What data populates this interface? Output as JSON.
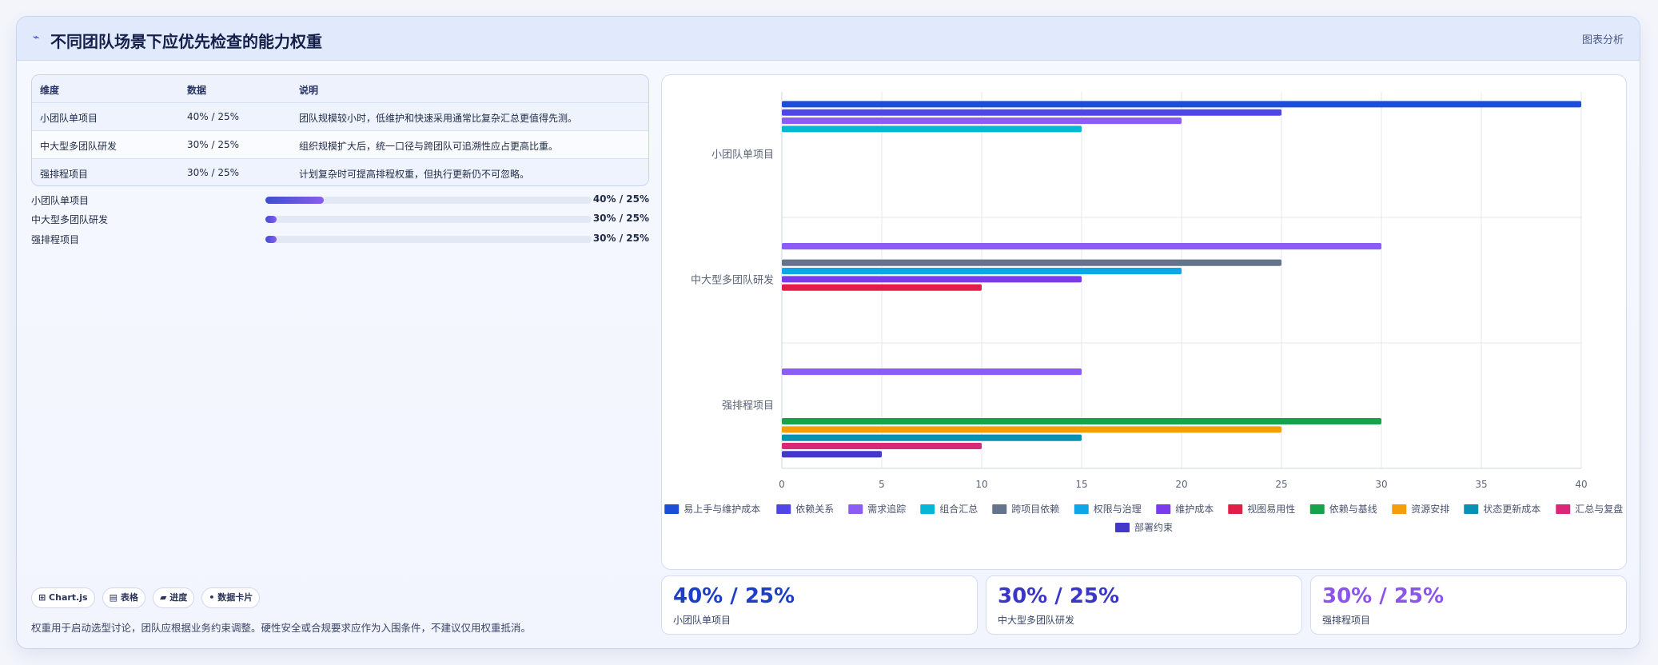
{
  "header": {
    "icon": "trend-line-icon",
    "title": "不同团队场景下应优先检查的能力权重",
    "badge": "图表分析"
  },
  "table": {
    "headers": [
      "维度",
      "数据",
      "说明"
    ],
    "rows": [
      [
        "小团队单项目",
        "40% / 25%",
        "团队规模较小时，低维护和快速采用通常比复杂汇总更值得先测。"
      ],
      [
        "中大型多团队研发",
        "30% / 25%",
        "组织规模扩大后，统一口径与跨团队可追溯性应占更高比重。"
      ],
      [
        "强排程项目",
        "30% / 25%",
        "计划复杂时可提高排程权重，但执行更新仍不可忽略。"
      ]
    ]
  },
  "progress": [
    {
      "label": "小团队单项目",
      "value": "40% / 25%",
      "fraction": 0.18
    },
    {
      "label": "中大型多团队研发",
      "value": "30% / 25%",
      "fraction": 0.035
    },
    {
      "label": "强排程项目",
      "value": "30% / 25%",
      "fraction": 0.035
    }
  ],
  "chips": [
    "⊞ Chart.js",
    "▤ 表格",
    "▰ 进度",
    "• 数据卡片"
  ],
  "footnote": "权重用于启动选型讨论，团队应根据业务约束调整。硬性安全或合规要求应作为入围条件，不建议仅用权重抵消。",
  "stats": [
    {
      "value": "40% / 25%",
      "label": "小团队单项目",
      "color": "#1d3fc8"
    },
    {
      "value": "30% / 25%",
      "label": "中大型多团队研发",
      "color": "#3a36c9"
    },
    {
      "value": "30% / 25%",
      "label": "强排程项目",
      "color": "#8b55ea"
    }
  ],
  "chart_data": {
    "type": "bar",
    "orientation": "horizontal",
    "categories": [
      "小团队单项目",
      "中大型多团队研发",
      "强排程项目"
    ],
    "xlim": [
      0,
      40
    ],
    "xticks": [
      0,
      5,
      10,
      15,
      20,
      25,
      30,
      35,
      40
    ],
    "grid": true,
    "legend": "bottom",
    "series": [
      {
        "name": "易上手与维护成本",
        "color": "#1d4ed8",
        "values": [
          40,
          null,
          null
        ]
      },
      {
        "name": "依赖关系",
        "color": "#4f46e5",
        "values": [
          25,
          null,
          null
        ]
      },
      {
        "name": "需求追踪",
        "color": "#8b5cf6",
        "values": [
          20,
          30,
          15
        ]
      },
      {
        "name": "组合汇总",
        "color": "#06b6d4",
        "values": [
          15,
          null,
          null
        ]
      },
      {
        "name": "跨项目依赖",
        "color": "#64748b",
        "values": [
          null,
          25,
          null
        ]
      },
      {
        "name": "权限与治理",
        "color": "#0ea5e9",
        "values": [
          null,
          20,
          null
        ]
      },
      {
        "name": "维护成本",
        "color": "#7c3aed",
        "values": [
          null,
          15,
          null
        ]
      },
      {
        "name": "视图易用性",
        "color": "#e11d48",
        "values": [
          null,
          10,
          null
        ]
      },
      {
        "name": "依赖与基线",
        "color": "#16a34a",
        "values": [
          null,
          null,
          30
        ]
      },
      {
        "name": "资源安排",
        "color": "#f59e0b",
        "values": [
          null,
          null,
          25
        ]
      },
      {
        "name": "状态更新成本",
        "color": "#0891b2",
        "values": [
          null,
          null,
          15
        ]
      },
      {
        "name": "汇总与复盘",
        "color": "#db2777",
        "values": [
          null,
          null,
          10
        ]
      },
      {
        "name": "部署约束",
        "color": "#4338ca",
        "values": [
          null,
          null,
          5
        ]
      }
    ]
  }
}
